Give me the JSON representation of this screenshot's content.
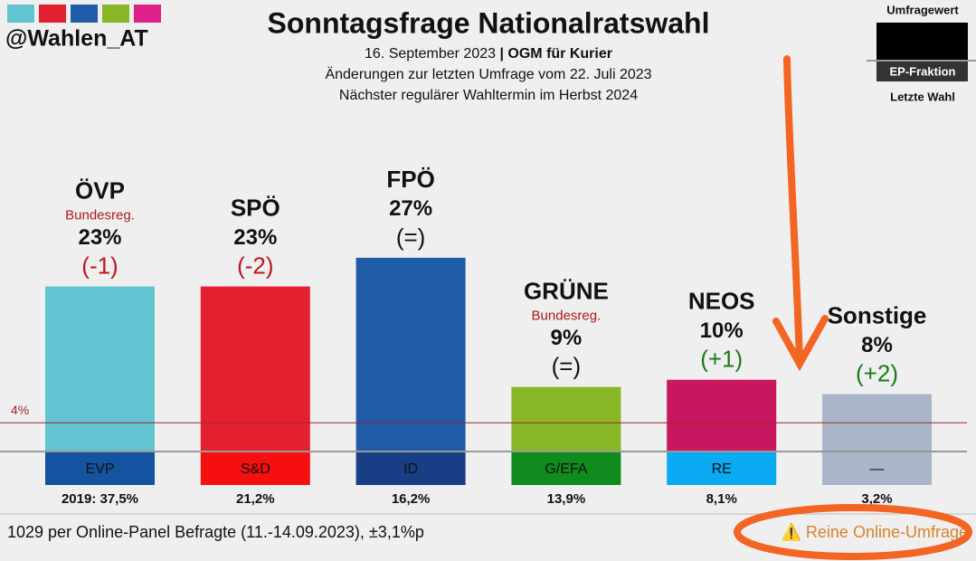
{
  "chart_data": {
    "type": "bar",
    "handle": "@Wahlen_AT",
    "title": "Sonntagsfrage Nationalratswahl",
    "subtitle_date": "16. September 2023",
    "subtitle_separator": "|",
    "subtitle_source": "OGM für Kurier",
    "subtitle_lines": [
      "Änderungen zur letzten Umfrage vom 22. Juli 2023",
      "Nächster regulärer Wahltermin im Herbst 2024"
    ],
    "categories": [
      "ÖVP",
      "SPÖ",
      "FPÖ",
      "GRÜNE",
      "NEOS",
      "Sonstige"
    ],
    "notes": [
      "Bundesreg.",
      null,
      null,
      "Bundesreg.",
      null,
      null
    ],
    "values": [
      23,
      23,
      27,
      9,
      10,
      8
    ],
    "value_labels": [
      "23%",
      "23%",
      "27%",
      "9%",
      "10%",
      "8%"
    ],
    "changes": [
      "(-1)",
      "(-2)",
      "(=)",
      "(=)",
      "(+1)",
      "(+2)"
    ],
    "colors": [
      "#63c3d0",
      "#e3202f",
      "#1f5ba6",
      "#88b626",
      "#c8175f",
      "#a9b5c9"
    ],
    "ep_groups": [
      "EVP",
      "S&D",
      "ID",
      "G/EFA",
      "RE",
      "—"
    ],
    "ep_colors": [
      "#14539f",
      "#f50f0f",
      "#193e85",
      "#108c1e",
      "#0aabf2",
      "#a9b5c9"
    ],
    "last_election": [
      "2019: 37,5%",
      "21,2%",
      "16,2%",
      "13,9%",
      "8,1%",
      "3,2%"
    ],
    "threshold": {
      "value": 4,
      "label": "4%"
    },
    "legend": {
      "value": "Umfragewert",
      "group": "EP-Fraktion",
      "last": "Letzte Wahl"
    },
    "footer": "1029 per Online-Panel Befragte (11.-14.09.2023), ±3,1%p",
    "warning": "⚠️ Reine Online-Umfrage"
  }
}
